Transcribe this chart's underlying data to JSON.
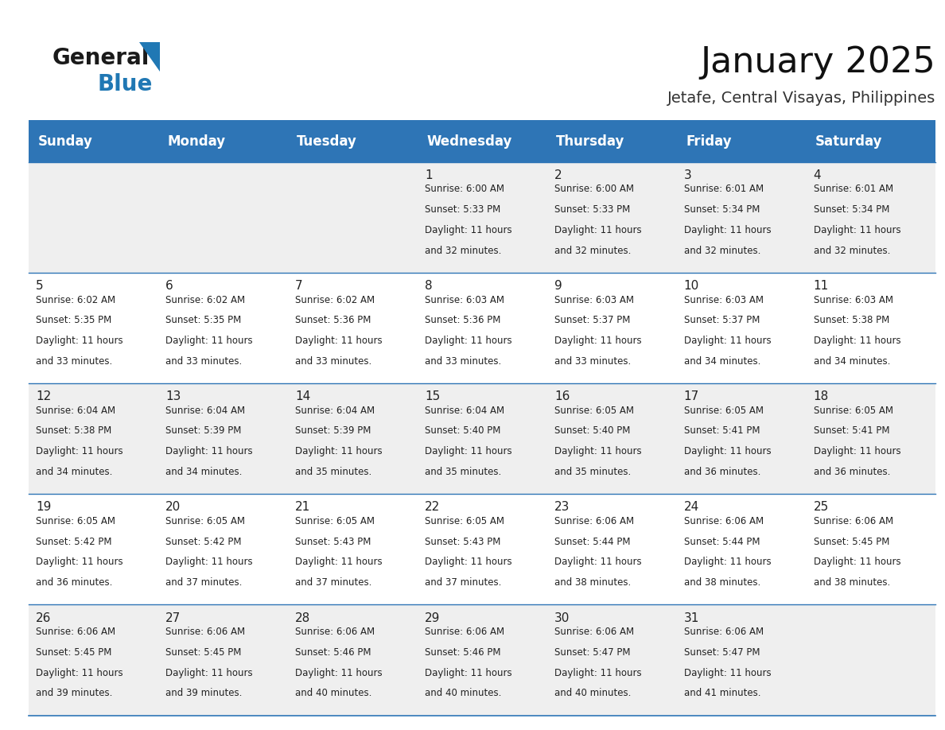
{
  "title": "January 2025",
  "subtitle": "Jetafe, Central Visayas, Philippines",
  "days_of_week": [
    "Sunday",
    "Monday",
    "Tuesday",
    "Wednesday",
    "Thursday",
    "Friday",
    "Saturday"
  ],
  "header_bg": "#2E75B6",
  "header_text": "#FFFFFF",
  "row_bg_odd": "#EFEFEF",
  "row_bg_even": "#FFFFFF",
  "cell_border_color": "#2E75B6",
  "day_num_color": "#222222",
  "text_color": "#222222",
  "calendar_data": [
    [
      null,
      null,
      null,
      {
        "day": 1,
        "sunrise": "6:00 AM",
        "sunset": "5:33 PM",
        "daylight": "11 hours and 32 minutes."
      },
      {
        "day": 2,
        "sunrise": "6:00 AM",
        "sunset": "5:33 PM",
        "daylight": "11 hours and 32 minutes."
      },
      {
        "day": 3,
        "sunrise": "6:01 AM",
        "sunset": "5:34 PM",
        "daylight": "11 hours and 32 minutes."
      },
      {
        "day": 4,
        "sunrise": "6:01 AM",
        "sunset": "5:34 PM",
        "daylight": "11 hours and 32 minutes."
      }
    ],
    [
      {
        "day": 5,
        "sunrise": "6:02 AM",
        "sunset": "5:35 PM",
        "daylight": "11 hours and 33 minutes."
      },
      {
        "day": 6,
        "sunrise": "6:02 AM",
        "sunset": "5:35 PM",
        "daylight": "11 hours and 33 minutes."
      },
      {
        "day": 7,
        "sunrise": "6:02 AM",
        "sunset": "5:36 PM",
        "daylight": "11 hours and 33 minutes."
      },
      {
        "day": 8,
        "sunrise": "6:03 AM",
        "sunset": "5:36 PM",
        "daylight": "11 hours and 33 minutes."
      },
      {
        "day": 9,
        "sunrise": "6:03 AM",
        "sunset": "5:37 PM",
        "daylight": "11 hours and 33 minutes."
      },
      {
        "day": 10,
        "sunrise": "6:03 AM",
        "sunset": "5:37 PM",
        "daylight": "11 hours and 34 minutes."
      },
      {
        "day": 11,
        "sunrise": "6:03 AM",
        "sunset": "5:38 PM",
        "daylight": "11 hours and 34 minutes."
      }
    ],
    [
      {
        "day": 12,
        "sunrise": "6:04 AM",
        "sunset": "5:38 PM",
        "daylight": "11 hours and 34 minutes."
      },
      {
        "day": 13,
        "sunrise": "6:04 AM",
        "sunset": "5:39 PM",
        "daylight": "11 hours and 34 minutes."
      },
      {
        "day": 14,
        "sunrise": "6:04 AM",
        "sunset": "5:39 PM",
        "daylight": "11 hours and 35 minutes."
      },
      {
        "day": 15,
        "sunrise": "6:04 AM",
        "sunset": "5:40 PM",
        "daylight": "11 hours and 35 minutes."
      },
      {
        "day": 16,
        "sunrise": "6:05 AM",
        "sunset": "5:40 PM",
        "daylight": "11 hours and 35 minutes."
      },
      {
        "day": 17,
        "sunrise": "6:05 AM",
        "sunset": "5:41 PM",
        "daylight": "11 hours and 36 minutes."
      },
      {
        "day": 18,
        "sunrise": "6:05 AM",
        "sunset": "5:41 PM",
        "daylight": "11 hours and 36 minutes."
      }
    ],
    [
      {
        "day": 19,
        "sunrise": "6:05 AM",
        "sunset": "5:42 PM",
        "daylight": "11 hours and 36 minutes."
      },
      {
        "day": 20,
        "sunrise": "6:05 AM",
        "sunset": "5:42 PM",
        "daylight": "11 hours and 37 minutes."
      },
      {
        "day": 21,
        "sunrise": "6:05 AM",
        "sunset": "5:43 PM",
        "daylight": "11 hours and 37 minutes."
      },
      {
        "day": 22,
        "sunrise": "6:05 AM",
        "sunset": "5:43 PM",
        "daylight": "11 hours and 37 minutes."
      },
      {
        "day": 23,
        "sunrise": "6:06 AM",
        "sunset": "5:44 PM",
        "daylight": "11 hours and 38 minutes."
      },
      {
        "day": 24,
        "sunrise": "6:06 AM",
        "sunset": "5:44 PM",
        "daylight": "11 hours and 38 minutes."
      },
      {
        "day": 25,
        "sunrise": "6:06 AM",
        "sunset": "5:45 PM",
        "daylight": "11 hours and 38 minutes."
      }
    ],
    [
      {
        "day": 26,
        "sunrise": "6:06 AM",
        "sunset": "5:45 PM",
        "daylight": "11 hours and 39 minutes."
      },
      {
        "day": 27,
        "sunrise": "6:06 AM",
        "sunset": "5:45 PM",
        "daylight": "11 hours and 39 minutes."
      },
      {
        "day": 28,
        "sunrise": "6:06 AM",
        "sunset": "5:46 PM",
        "daylight": "11 hours and 40 minutes."
      },
      {
        "day": 29,
        "sunrise": "6:06 AM",
        "sunset": "5:46 PM",
        "daylight": "11 hours and 40 minutes."
      },
      {
        "day": 30,
        "sunrise": "6:06 AM",
        "sunset": "5:47 PM",
        "daylight": "11 hours and 40 minutes."
      },
      {
        "day": 31,
        "sunrise": "6:06 AM",
        "sunset": "5:47 PM",
        "daylight": "11 hours and 41 minutes."
      },
      null
    ]
  ],
  "logo_general_color": "#1a1a1a",
  "logo_blue_color": "#2078B4",
  "title_fontsize": 32,
  "subtitle_fontsize": 14,
  "header_fontsize": 12,
  "day_num_fontsize": 11,
  "cell_text_fontsize": 8.5,
  "fig_width": 11.88,
  "fig_height": 9.18
}
